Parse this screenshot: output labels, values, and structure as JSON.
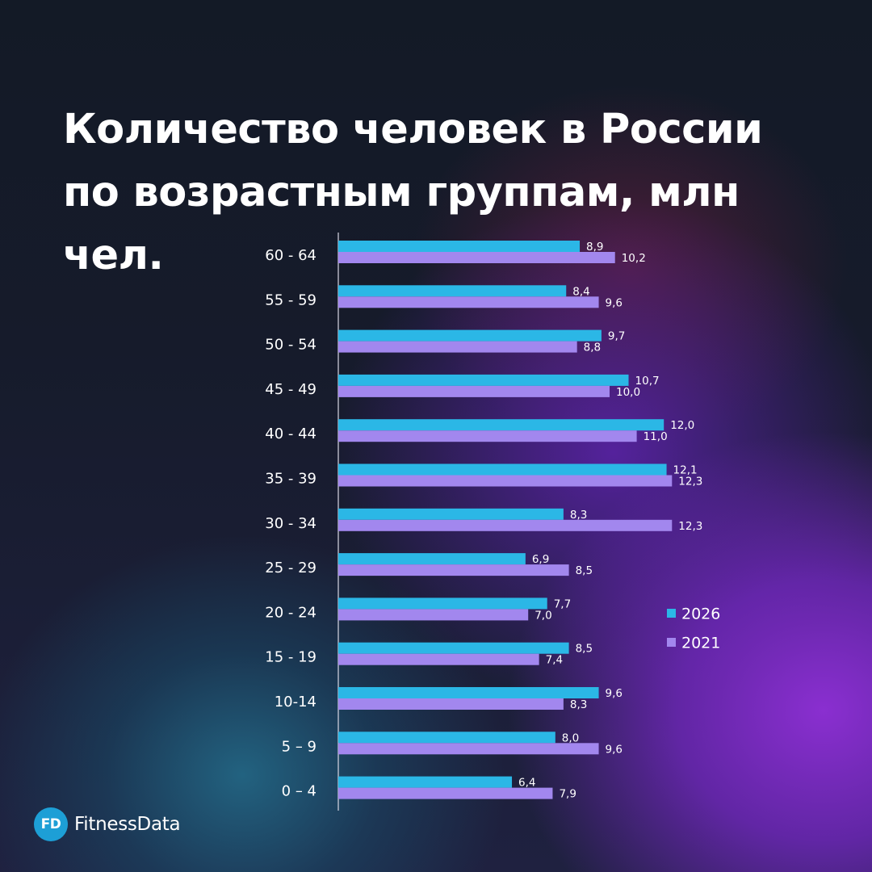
{
  "chart_data": {
    "type": "bar",
    "orientation": "horizontal",
    "title": "Количество человек в России по возрастным группам, млн чел.",
    "categories": [
      "60 - 64",
      "55 - 59",
      "50 - 54",
      "45 - 49",
      "40 - 44",
      "35 - 39",
      "30 - 34",
      "25 - 29",
      "20 - 24",
      "15 - 19",
      "10-14",
      "5 – 9",
      "0 – 4"
    ],
    "series": [
      {
        "name": "2026",
        "color": "#2bb7e6",
        "values": [
          8.9,
          8.4,
          9.7,
          10.7,
          12.0,
          12.1,
          8.3,
          6.9,
          7.7,
          8.5,
          9.6,
          8.0,
          6.4
        ],
        "labels": [
          "8,9",
          "8,4",
          "9,7",
          "10,7",
          "12,0",
          "12,1",
          "8,3",
          "6,9",
          "7,7",
          "8,5",
          "9,6",
          "8,0",
          "6,4"
        ]
      },
      {
        "name": "2021",
        "color": "#a287ee",
        "values": [
          10.2,
          9.6,
          8.8,
          10.0,
          11.0,
          12.3,
          12.3,
          8.5,
          7.0,
          7.4,
          8.3,
          9.6,
          7.9
        ],
        "labels": [
          "10,2",
          "9,6",
          "8,8",
          "10,0",
          "11,0",
          "12,3",
          "12,3",
          "8,5",
          "7,0",
          "7,4",
          "8,3",
          "9,6",
          "7,9"
        ]
      }
    ],
    "xlim": [
      0,
      13
    ],
    "grid": false,
    "legend": "right"
  },
  "brand": {
    "badge": "FD",
    "name": "FitnessData"
  }
}
